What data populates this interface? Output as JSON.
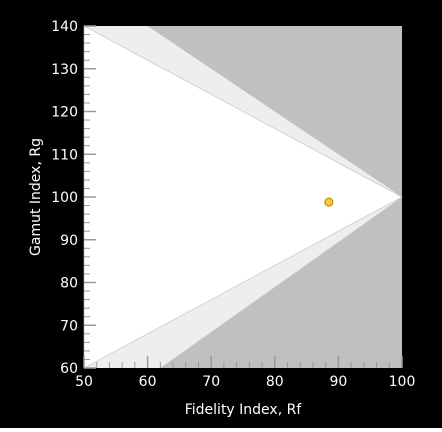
{
  "chart_data": {
    "type": "scatter",
    "title": "",
    "xlabel": "Fidelity Index, Rf",
    "ylabel": "Gamut Index, Rg",
    "xlim": [
      50,
      100
    ],
    "ylim": [
      60,
      140
    ],
    "x_ticks": [
      50,
      60,
      70,
      80,
      90,
      100
    ],
    "y_ticks": [
      60,
      70,
      80,
      90,
      100,
      110,
      120,
      130,
      140
    ],
    "x_minor_step": 2,
    "y_minor_step": 2,
    "grid": false,
    "legend": "none",
    "points": [
      {
        "x": 88.5,
        "y": 98.8
      }
    ],
    "colors": {
      "background": "#000000",
      "plot_outer": "#c0c0c0",
      "band": "#eeeeee",
      "inner": "#ffffff",
      "point_fill": "#ffcc33",
      "point_stroke": "#b07a00",
      "text": "#ffffff",
      "axis": "#9a9a9a"
    }
  }
}
